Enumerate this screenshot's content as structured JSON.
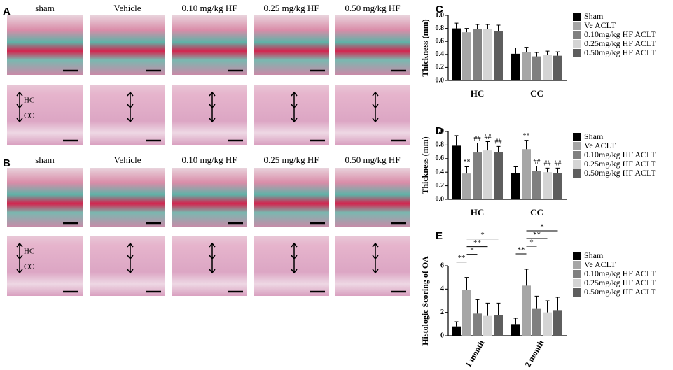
{
  "histology": [
    {
      "label": "A",
      "columns": [
        "sham",
        "Vehicle",
        "0.10 mg/kg HF",
        "0.25 mg/kg HF",
        "0.50 mg/kg HF"
      ],
      "layers": [
        "HC",
        "CC"
      ]
    },
    {
      "label": "B",
      "columns": [
        "sham",
        "Vehicle",
        "0.10 mg/kg HF",
        "0.25 mg/kg HF",
        "0.50 mg/kg HF"
      ],
      "layers": [
        "HC",
        "CC"
      ]
    }
  ],
  "chart_data": [
    {
      "type": "bar",
      "label": "C",
      "ylabel": "Thickness (mm)",
      "categories": [
        "HC",
        "CC"
      ],
      "ylim": [
        0,
        1.0
      ],
      "yticks": [
        {
          "value": 0,
          "label": "0.0"
        },
        0.2,
        0.4,
        0.6,
        0.8,
        {
          "value": 1.0,
          "label": "1.0"
        }
      ],
      "series": [
        {
          "name": "Sham",
          "color": "#000000",
          "values": [
            0.8,
            0.41
          ],
          "errors": [
            0.08,
            0.09
          ]
        },
        {
          "name": "Ve ACLT",
          "color": "#a6a6a6",
          "values": [
            0.74,
            0.43
          ],
          "errors": [
            0.06,
            0.08
          ]
        },
        {
          "name": "0.10mg/kg HF ACLT",
          "color": "#808080",
          "values": [
            0.79,
            0.37
          ],
          "errors": [
            0.07,
            0.06
          ]
        },
        {
          "name": "0.25mg/kg HF ACLT",
          "color": "#d4d4d4",
          "values": [
            0.79,
            0.39
          ],
          "errors": [
            0.07,
            0.06
          ]
        },
        {
          "name": "0.50mg/kg HF ACLT",
          "color": "#5e5e5e",
          "values": [
            0.76,
            0.38
          ],
          "errors": [
            0.09,
            0.06
          ]
        }
      ]
    },
    {
      "type": "bar",
      "label": "D",
      "ylabel": "Thickness (mm)",
      "categories": [
        "HC",
        "CC"
      ],
      "ylim": [
        0,
        1.0
      ],
      "yticks": [
        {
          "value": 0,
          "label": "0.0"
        },
        0.2,
        0.4,
        0.6,
        0.8,
        {
          "value": 1.0,
          "label": "1.0"
        }
      ],
      "series": [
        {
          "name": "Sham",
          "color": "#000000",
          "values": [
            0.79,
            0.39
          ],
          "errors": [
            0.15,
            0.09
          ]
        },
        {
          "name": "Ve ACLT",
          "color": "#a6a6a6",
          "values": [
            0.38,
            0.74
          ],
          "errors": [
            0.1,
            0.13
          ],
          "significance": [
            "**",
            "**"
          ]
        },
        {
          "name": "0.10mg/kg HF ACLT",
          "color": "#808080",
          "values": [
            0.69,
            0.42
          ],
          "errors": [
            0.14,
            0.07
          ],
          "significance": [
            "##",
            "##"
          ]
        },
        {
          "name": "0.25mg/kg HF ACLT",
          "color": "#d4d4d4",
          "values": [
            0.72,
            0.4
          ],
          "errors": [
            0.13,
            0.06
          ],
          "significance": [
            "##",
            "##"
          ]
        },
        {
          "name": "0.50mg/kg HF ACLT",
          "color": "#5e5e5e",
          "values": [
            0.7,
            0.39
          ],
          "errors": [
            0.08,
            0.07
          ],
          "significance": [
            "##",
            "##"
          ]
        }
      ]
    },
    {
      "type": "bar",
      "label": "E",
      "ylabel": "Histologic Scoring of OA",
      "categories": [
        "1 month",
        "2 month"
      ],
      "ylim": [
        0,
        6
      ],
      "yticks": [
        0,
        2,
        4,
        6
      ],
      "series": [
        {
          "name": "Sham",
          "color": "#000000",
          "values": [
            0.8,
            1.0
          ],
          "errors": [
            0.4,
            0.5
          ]
        },
        {
          "name": "Ve ACLT",
          "color": "#a6a6a6",
          "values": [
            3.9,
            4.3
          ],
          "errors": [
            1.1,
            1.4
          ]
        },
        {
          "name": "0.10mg/kg HF ACLT",
          "color": "#808080",
          "values": [
            1.9,
            2.3
          ],
          "errors": [
            1.2,
            1.1
          ]
        },
        {
          "name": "0.25mg/kg HF ACLT",
          "color": "#d4d4d4",
          "values": [
            1.7,
            2.0
          ],
          "errors": [
            1.1,
            1.0
          ]
        },
        {
          "name": "0.50mg/kg HF ACLT",
          "color": "#5e5e5e",
          "values": [
            1.8,
            2.2
          ],
          "errors": [
            1.0,
            1.1
          ]
        }
      ],
      "brackets": [
        [
          {
            "from": 0,
            "to": 1,
            "text": "**"
          },
          {
            "from": 1,
            "to": 2,
            "text": "*"
          },
          {
            "from": 1,
            "to": 3,
            "text": "**"
          },
          {
            "from": 1,
            "to": 4,
            "text": "*"
          }
        ],
        [
          {
            "from": 0,
            "to": 1,
            "text": "**"
          },
          {
            "from": 1,
            "to": 2,
            "text": "*"
          },
          {
            "from": 1,
            "to": 3,
            "text": "**"
          },
          {
            "from": 1,
            "to": 4,
            "text": "*"
          }
        ]
      ]
    }
  ]
}
